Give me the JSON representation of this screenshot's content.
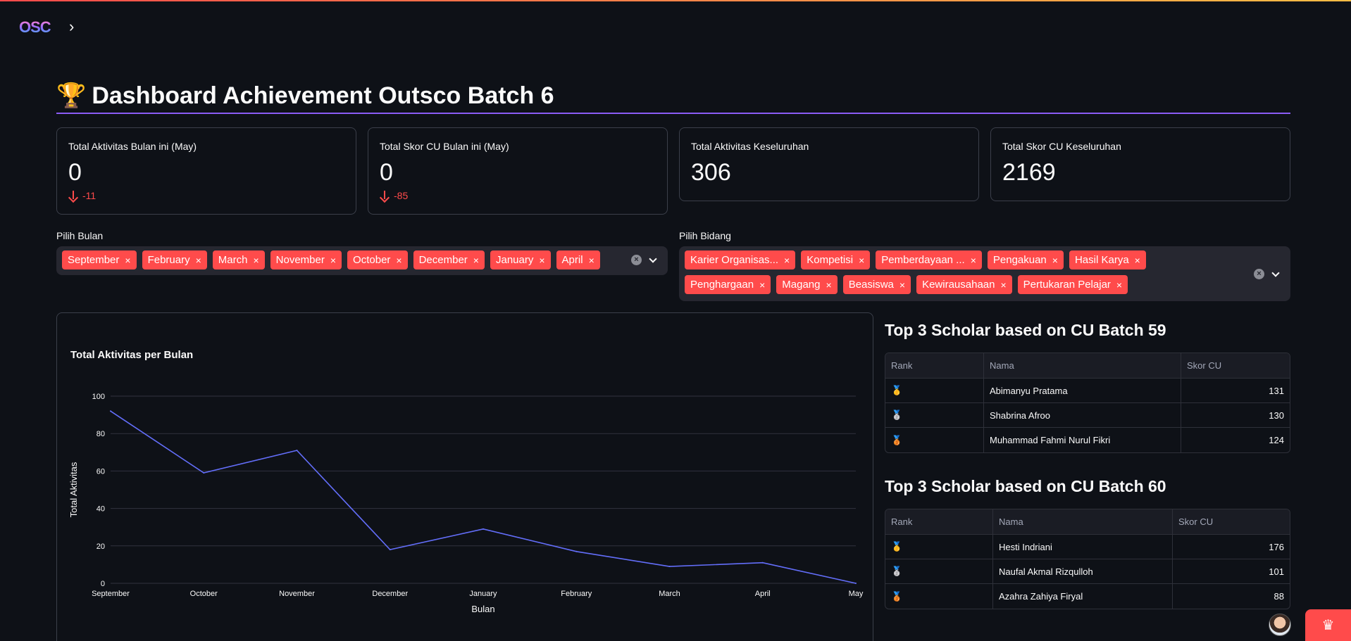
{
  "header": {
    "logo_text": "OSC",
    "sidebar_toggle": "›"
  },
  "page": {
    "icon": "🏆",
    "title": "Dashboard Achievement Outsco Batch 6"
  },
  "metrics": [
    {
      "label": "Total Aktivitas Bulan ini (May)",
      "value": "0",
      "delta": "-11"
    },
    {
      "label": "Total Skor CU Bulan ini (May)",
      "value": "0",
      "delta": "-85"
    },
    {
      "label": "Total Aktivitas Keseluruhan",
      "value": "306"
    },
    {
      "label": "Total Skor CU Keseluruhan",
      "value": "2169"
    }
  ],
  "filters": {
    "month": {
      "label": "Pilih Bulan",
      "selected": [
        "September",
        "February",
        "March",
        "November",
        "October",
        "December",
        "January",
        "April"
      ]
    },
    "field": {
      "label": "Pilih Bidang",
      "selected": [
        "Karier Organisas...",
        "Kompetisi",
        "Pemberdayaan ...",
        "Pengakuan",
        "Hasil Karya",
        "Penghargaan",
        "Magang",
        "Beasiswa",
        "Kewirausahaan",
        "Pertukaran Pelajar"
      ]
    }
  },
  "chart_data": {
    "type": "line",
    "title": "Total Aktivitas per Bulan",
    "xlabel": "Bulan",
    "ylabel": "Total Aktivitas",
    "categories": [
      "September",
      "October",
      "November",
      "December",
      "January",
      "February",
      "March",
      "April",
      "May"
    ],
    "values": [
      92,
      59,
      71,
      18,
      29,
      17,
      9,
      11,
      0
    ],
    "ylim": [
      0,
      100
    ],
    "yticks": [
      0,
      20,
      40,
      60,
      80,
      100
    ],
    "grid": true,
    "color": "#636efa"
  },
  "rank59": {
    "title": "Top 3 Scholar based on CU Batch 59",
    "headers": [
      "Rank",
      "Nama",
      "Skor CU"
    ],
    "rows": [
      {
        "rank": "🥇",
        "name": "Abimanyu Pratama",
        "score": "131"
      },
      {
        "rank": "🥈",
        "name": "Shabrina Afroo",
        "score": "130"
      },
      {
        "rank": "🥉",
        "name": "Muhammad Fahmi Nurul Fikri",
        "score": "124"
      }
    ]
  },
  "rank60": {
    "title": "Top 3 Scholar based on CU Batch 60",
    "headers": [
      "Rank",
      "Nama",
      "Skor CU"
    ],
    "rows": [
      {
        "rank": "🥇",
        "name": "Hesti Indriani",
        "score": "176"
      },
      {
        "rank": "🥈",
        "name": "Naufal Akmal Rizqulloh",
        "score": "101"
      },
      {
        "rank": "🥉",
        "name": "Azahra Zahiya Firyal",
        "score": "88"
      }
    ]
  },
  "colors": {
    "accent": "#ff4b4b",
    "divider": "#8b5cf6",
    "background": "#0e1117"
  }
}
